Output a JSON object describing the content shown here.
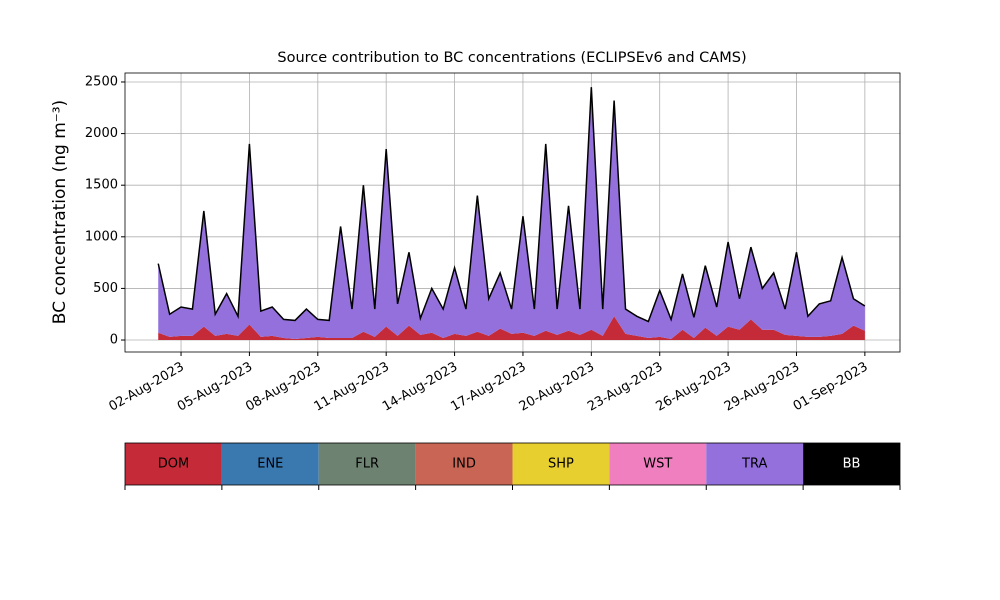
{
  "chart_data": {
    "type": "stacked_area",
    "title": "Source contribution to BC concentrations (ECLIPSEv6 and CAMS)",
    "y_label": "BC concentration (ng m⁻³)",
    "x": [
      "2023-08-01 00:00",
      "2023-08-01 12:00",
      "2023-08-02 00:00",
      "2023-08-02 12:00",
      "2023-08-03 00:00",
      "2023-08-03 12:00",
      "2023-08-04 00:00",
      "2023-08-04 12:00",
      "2023-08-05 00:00",
      "2023-08-05 12:00",
      "2023-08-06 00:00",
      "2023-08-06 12:00",
      "2023-08-07 00:00",
      "2023-08-07 12:00",
      "2023-08-08 00:00",
      "2023-08-08 12:00",
      "2023-08-09 00:00",
      "2023-08-09 12:00",
      "2023-08-10 00:00",
      "2023-08-10 12:00",
      "2023-08-11 00:00",
      "2023-08-11 12:00",
      "2023-08-12 00:00",
      "2023-08-12 12:00",
      "2023-08-13 00:00",
      "2023-08-13 12:00",
      "2023-08-14 00:00",
      "2023-08-14 12:00",
      "2023-08-15 00:00",
      "2023-08-15 12:00",
      "2023-08-16 00:00",
      "2023-08-16 12:00",
      "2023-08-17 00:00",
      "2023-08-17 12:00",
      "2023-08-18 00:00",
      "2023-08-18 12:00",
      "2023-08-19 00:00",
      "2023-08-19 12:00",
      "2023-08-20 00:00",
      "2023-08-20 12:00",
      "2023-08-21 00:00",
      "2023-08-21 12:00",
      "2023-08-22 00:00",
      "2023-08-22 12:00",
      "2023-08-23 00:00",
      "2023-08-23 12:00",
      "2023-08-24 00:00",
      "2023-08-24 12:00",
      "2023-08-25 00:00",
      "2023-08-25 12:00",
      "2023-08-26 00:00",
      "2023-08-26 12:00",
      "2023-08-27 00:00",
      "2023-08-27 12:00",
      "2023-08-28 00:00",
      "2023-08-28 12:00",
      "2023-08-29 00:00",
      "2023-08-29 12:00",
      "2023-08-30 00:00",
      "2023-08-30 12:00",
      "2023-08-31 00:00",
      "2023-08-31 12:00",
      "2023-09-01 00:00"
    ],
    "series": [
      {
        "name": "DOM",
        "color": "#c42a38",
        "values": [
          70,
          30,
          40,
          40,
          130,
          40,
          60,
          40,
          150,
          30,
          40,
          20,
          10,
          20,
          30,
          20,
          20,
          20,
          80,
          30,
          130,
          40,
          140,
          50,
          70,
          20,
          60,
          40,
          80,
          40,
          110,
          60,
          70,
          40,
          90,
          50,
          90,
          50,
          100,
          40,
          230,
          60,
          40,
          20,
          30,
          10,
          100,
          20,
          120,
          40,
          130,
          100,
          200,
          100,
          100,
          50,
          40,
          30,
          30,
          40,
          60,
          140,
          90
        ]
      },
      {
        "name": "ENE",
        "color": "#3a78b0",
        "values": [
          0,
          0,
          0,
          0,
          0,
          0,
          0,
          0,
          0,
          0,
          0,
          0,
          0,
          0,
          0,
          0,
          0,
          0,
          0,
          0,
          0,
          0,
          0,
          0,
          0,
          0,
          0,
          0,
          0,
          0,
          0,
          0,
          0,
          0,
          0,
          0,
          0,
          0,
          0,
          0,
          0,
          0,
          0,
          0,
          0,
          0,
          0,
          0,
          0,
          0,
          0,
          0,
          0,
          0,
          0,
          0,
          0,
          0,
          0,
          0,
          0,
          0,
          0
        ]
      },
      {
        "name": "FLR",
        "color": "#6e8272",
        "values": [
          0,
          0,
          0,
          0,
          0,
          0,
          0,
          0,
          0,
          0,
          0,
          0,
          0,
          0,
          0,
          0,
          0,
          0,
          0,
          0,
          0,
          0,
          0,
          0,
          0,
          0,
          0,
          0,
          0,
          0,
          0,
          0,
          0,
          0,
          0,
          0,
          0,
          0,
          0,
          0,
          0,
          0,
          0,
          0,
          0,
          0,
          0,
          0,
          0,
          0,
          0,
          0,
          0,
          0,
          0,
          0,
          0,
          0,
          0,
          0,
          0,
          0,
          0
        ]
      },
      {
        "name": "IND",
        "color": "#c96555",
        "values": [
          0,
          0,
          0,
          0,
          0,
          0,
          0,
          0,
          0,
          0,
          0,
          0,
          0,
          0,
          0,
          0,
          0,
          0,
          0,
          0,
          0,
          0,
          0,
          0,
          0,
          0,
          0,
          0,
          0,
          0,
          0,
          0,
          0,
          0,
          0,
          0,
          0,
          0,
          0,
          0,
          0,
          0,
          0,
          0,
          0,
          0,
          0,
          0,
          0,
          0,
          0,
          0,
          0,
          0,
          0,
          0,
          0,
          0,
          0,
          0,
          0,
          0,
          0
        ]
      },
      {
        "name": "SHP",
        "color": "#e8cf30",
        "values": [
          0,
          0,
          0,
          0,
          0,
          0,
          0,
          0,
          0,
          0,
          0,
          0,
          0,
          0,
          0,
          0,
          0,
          0,
          0,
          0,
          0,
          0,
          0,
          0,
          0,
          0,
          0,
          0,
          0,
          0,
          0,
          0,
          0,
          0,
          0,
          0,
          0,
          0,
          0,
          0,
          0,
          0,
          0,
          0,
          0,
          0,
          0,
          0,
          0,
          0,
          0,
          0,
          0,
          0,
          0,
          0,
          0,
          0,
          0,
          0,
          0,
          0,
          0
        ]
      },
      {
        "name": "WST",
        "color": "#f07fbf",
        "values": [
          0,
          0,
          0,
          0,
          0,
          0,
          0,
          0,
          0,
          0,
          0,
          0,
          0,
          0,
          0,
          0,
          0,
          0,
          0,
          0,
          0,
          0,
          0,
          0,
          0,
          0,
          0,
          0,
          0,
          0,
          0,
          0,
          0,
          0,
          0,
          0,
          0,
          0,
          0,
          0,
          0,
          0,
          0,
          0,
          0,
          0,
          0,
          0,
          0,
          0,
          0,
          0,
          0,
          0,
          0,
          0,
          0,
          0,
          0,
          0,
          0,
          0,
          0
        ]
      },
      {
        "name": "TRA",
        "color": "#9370db",
        "values": [
          670,
          220,
          280,
          260,
          1120,
          210,
          390,
          190,
          1750,
          250,
          280,
          180,
          180,
          280,
          170,
          170,
          1080,
          280,
          1420,
          270,
          1720,
          310,
          710,
          160,
          430,
          280,
          640,
          260,
          1320,
          360,
          540,
          240,
          1130,
          260,
          1810,
          250,
          1210,
          250,
          2350,
          260,
          2090,
          240,
          190,
          160,
          450,
          190,
          540,
          200,
          600,
          280,
          820,
          300,
          700,
          400,
          550,
          250,
          810,
          200,
          320,
          340,
          740,
          260,
          240
        ]
      },
      {
        "name": "BB",
        "color": "#000000",
        "values": [
          0,
          0,
          0,
          0,
          0,
          0,
          0,
          0,
          0,
          0,
          0,
          0,
          0,
          0,
          0,
          0,
          0,
          0,
          0,
          0,
          0,
          0,
          0,
          0,
          0,
          0,
          0,
          0,
          0,
          0,
          0,
          0,
          0,
          0,
          0,
          0,
          0,
          0,
          0,
          0,
          0,
          0,
          0,
          0,
          0,
          0,
          0,
          0,
          0,
          0,
          0,
          0,
          0,
          0,
          0,
          0,
          0,
          0,
          0,
          0,
          0,
          0,
          0
        ]
      }
    ],
    "xlim": [
      "2023-07-30 13:00",
      "2023-09-02 13:00"
    ],
    "xticks": [
      {
        "value": "2023-08-02",
        "label": "02-Aug-2023"
      },
      {
        "value": "2023-08-05",
        "label": "05-Aug-2023"
      },
      {
        "value": "2023-08-08",
        "label": "08-Aug-2023"
      },
      {
        "value": "2023-08-11",
        "label": "11-Aug-2023"
      },
      {
        "value": "2023-08-14",
        "label": "14-Aug-2023"
      },
      {
        "value": "2023-08-17",
        "label": "17-Aug-2023"
      },
      {
        "value": "2023-08-20",
        "label": "20-Aug-2023"
      },
      {
        "value": "2023-08-23",
        "label": "23-Aug-2023"
      },
      {
        "value": "2023-08-26",
        "label": "26-Aug-2023"
      },
      {
        "value": "2023-08-29",
        "label": "29-Aug-2023"
      },
      {
        "value": "2023-09-01",
        "label": "01-Sep-2023"
      }
    ],
    "ylim": [
      -116,
      2587
    ],
    "yticks": [
      0,
      500,
      1000,
      1500,
      2000,
      2500
    ],
    "grid": true
  }
}
